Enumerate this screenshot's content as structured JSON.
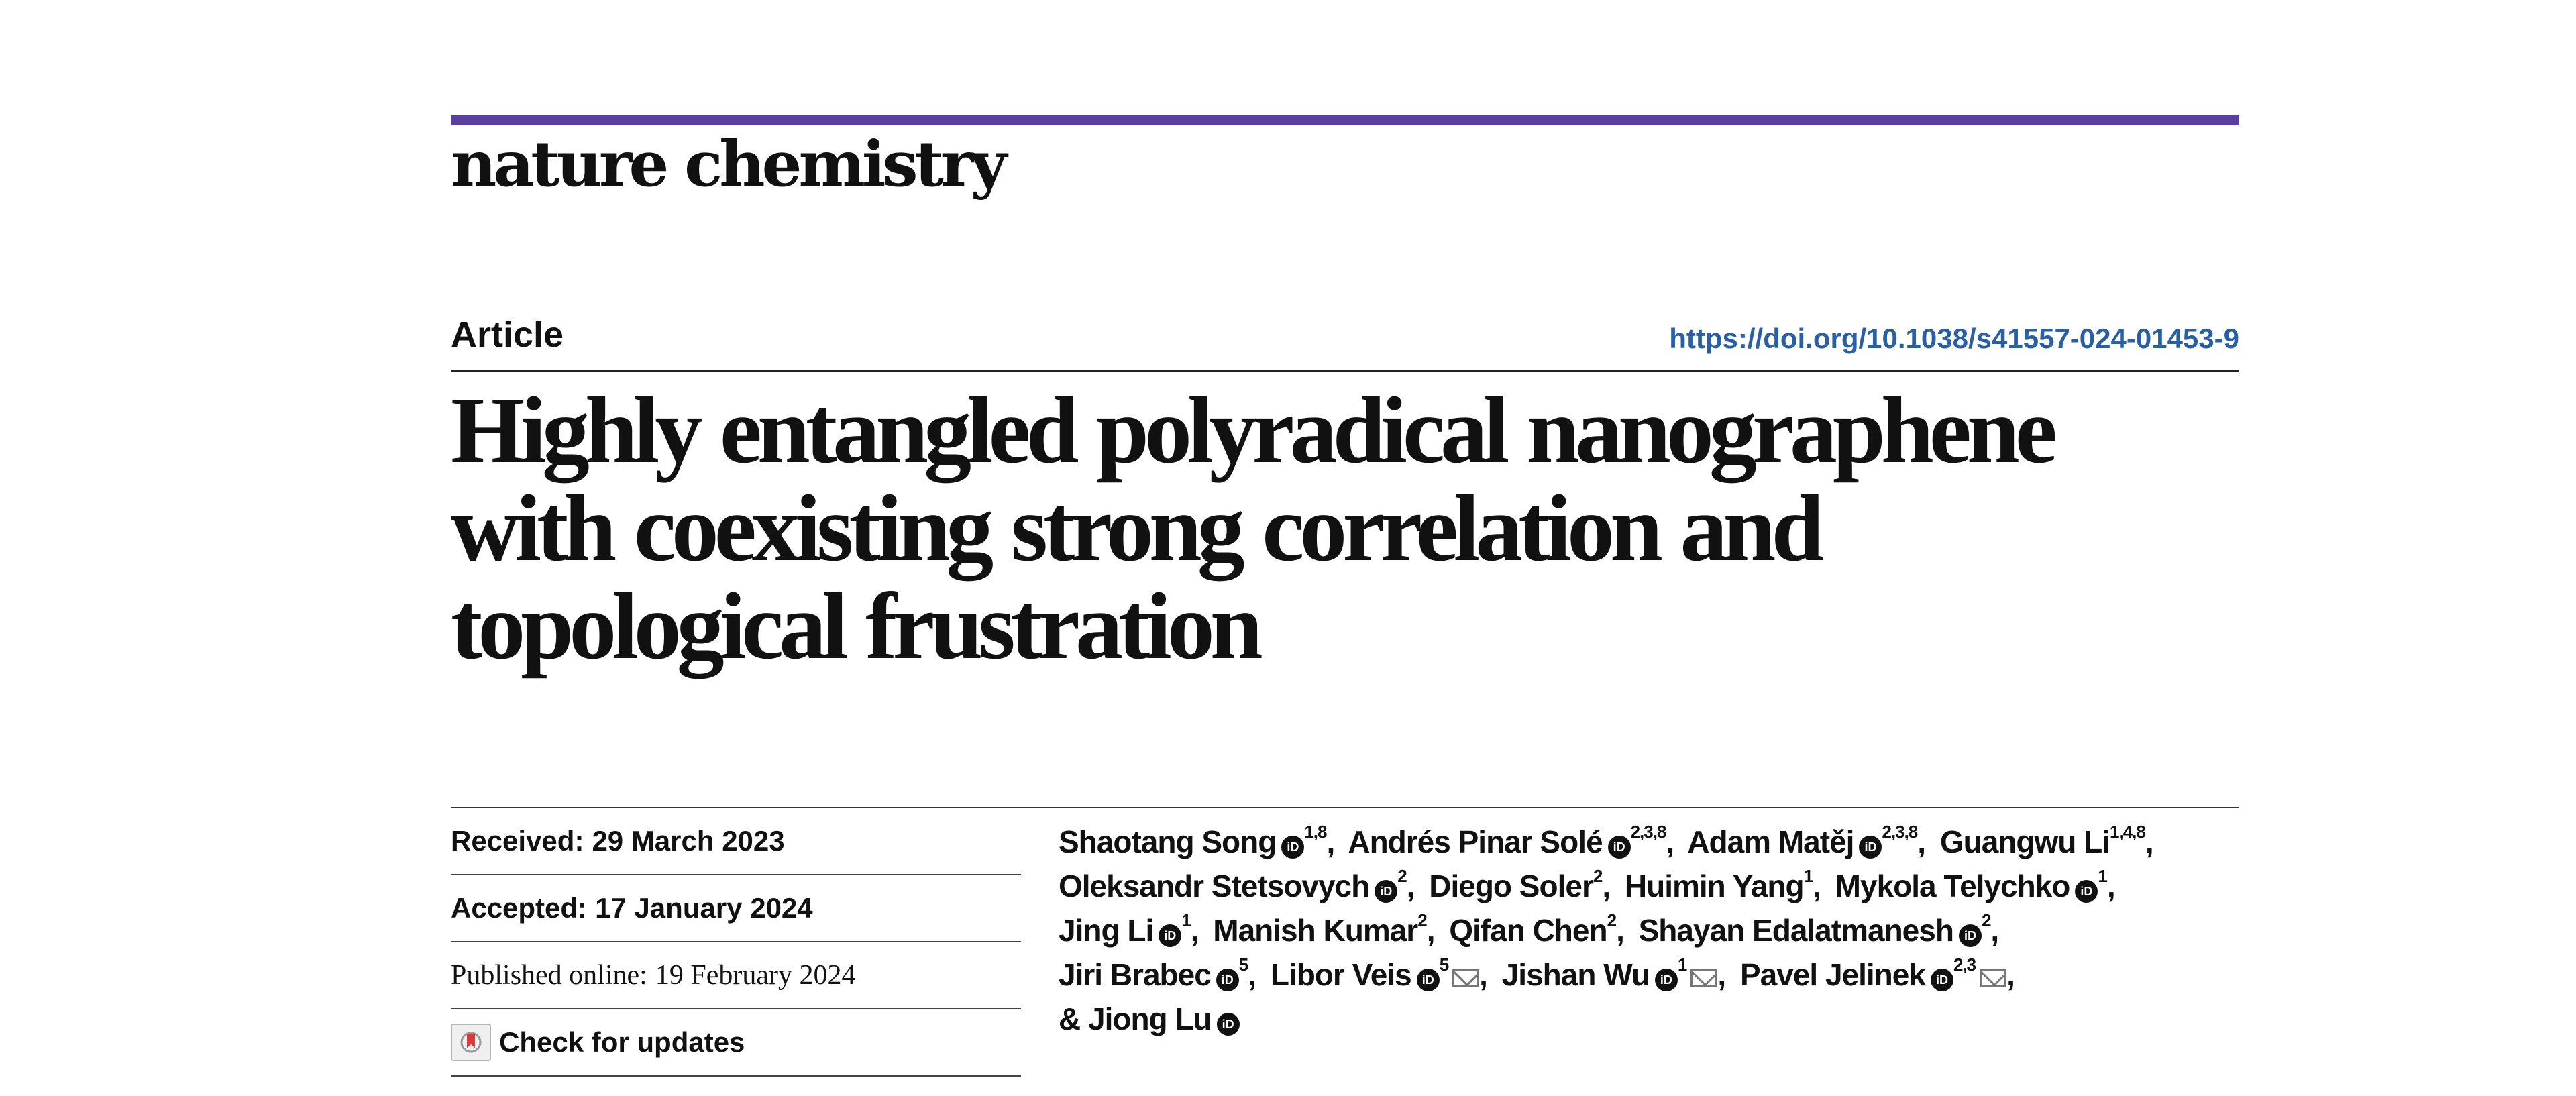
{
  "colors": {
    "accent_bar": "#5b3fa0",
    "doi_link": "#2a5fa3",
    "text": "#111111"
  },
  "journal": {
    "name": "nature chemistry"
  },
  "article": {
    "type_label": "Article",
    "doi": "https://doi.org/10.1038/s41557-024-01453-9",
    "title_lines": [
      "Highly entangled polyradical nanographene",
      "with coexisting strong correlation and",
      "topological frustration"
    ]
  },
  "dates": {
    "received_label": "Received:",
    "received": "29 March 2023",
    "accepted_label": "Accepted:",
    "accepted": "17 January 2024",
    "published_label": "Published online:",
    "published": "19 February 2024"
  },
  "updates": {
    "label": "Check for updates",
    "icon": "check-for-updates-icon"
  },
  "authors": [
    {
      "name": "Shaotang Song",
      "orcid": true,
      "affil": "1,8"
    },
    {
      "name": "Andrés Pinar Solé",
      "orcid": true,
      "affil": "2,3,8"
    },
    {
      "name": "Adam Matěj",
      "orcid": true,
      "affil": "2,3,8"
    },
    {
      "name": "Guangwu Li",
      "orcid": false,
      "affil": "1,4,8"
    },
    {
      "name": "Oleksandr Stetsovych",
      "orcid": true,
      "affil": "2"
    },
    {
      "name": "Diego Soler",
      "orcid": false,
      "affil": "2"
    },
    {
      "name": "Huimin Yang",
      "orcid": false,
      "affil": "1"
    },
    {
      "name": "Mykola Telychko",
      "orcid": true,
      "affil": "1"
    },
    {
      "name": "Jing Li",
      "orcid": true,
      "affil": "1"
    },
    {
      "name": "Manish Kumar",
      "orcid": false,
      "affil": "2"
    },
    {
      "name": "Qifan Chen",
      "orcid": false,
      "affil": "2"
    },
    {
      "name": "Shayan Edalatmanesh",
      "orcid": true,
      "affil": "2"
    },
    {
      "name": "Jiri Brabec",
      "orcid": true,
      "affil": "5"
    },
    {
      "name": "Libor Veis",
      "orcid": true,
      "affil": "5",
      "email": true
    },
    {
      "name": "Jishan Wu",
      "orcid": true,
      "affil": "1",
      "email": true
    },
    {
      "name": "Pavel Jelinek",
      "orcid": true,
      "affil": "2,3",
      "email": true
    },
    {
      "name": "& Jiong Lu",
      "orcid": true,
      "affil": ""
    }
  ],
  "orcid_glyph": "iD"
}
